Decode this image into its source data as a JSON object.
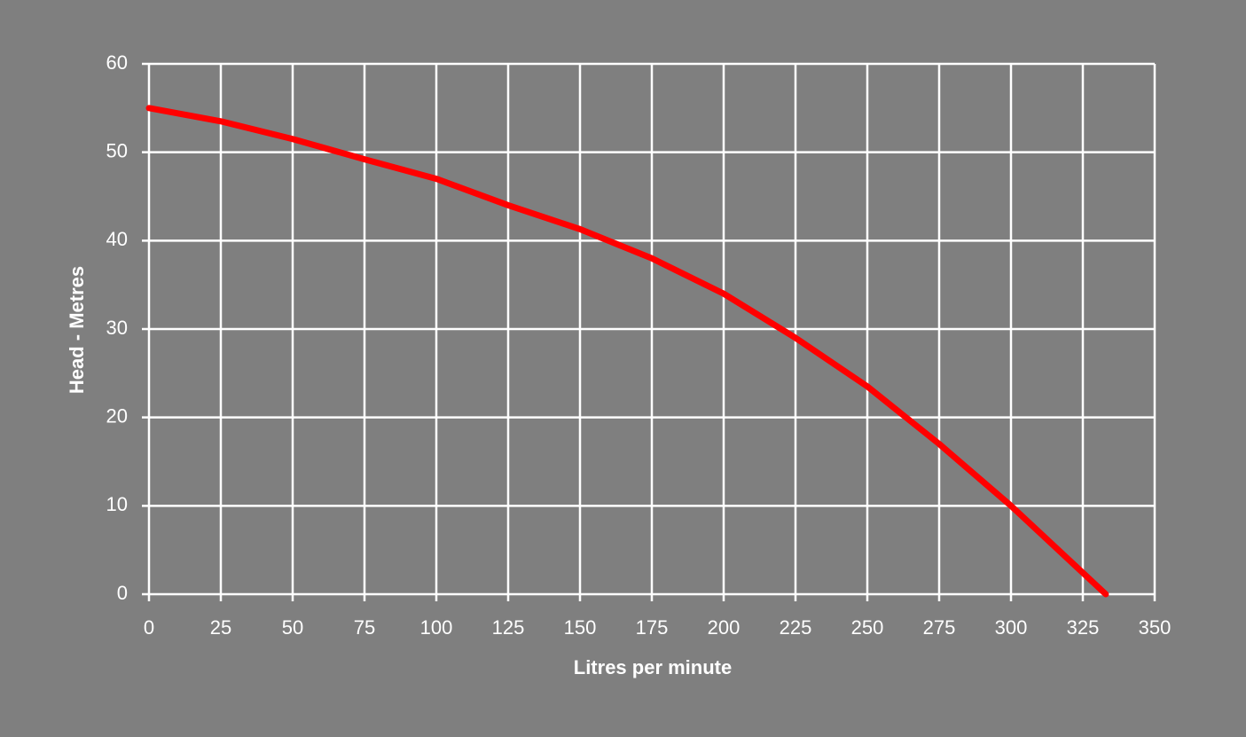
{
  "chart_data": {
    "type": "line",
    "x_label": "Litres per minute",
    "y_label": "Head - Metres",
    "x": [
      0,
      25,
      50,
      75,
      100,
      125,
      150,
      175,
      200,
      225,
      250,
      275,
      300,
      333
    ],
    "series": [
      {
        "name": "Head",
        "color": "#ff0000",
        "values": [
          55,
          53.5,
          51.5,
          49.2,
          47,
          44,
          41.3,
          38,
          34,
          29,
          23.5,
          17,
          10,
          0
        ]
      }
    ],
    "xlim": [
      0,
      350
    ],
    "xticks": [
      0,
      25,
      50,
      75,
      100,
      125,
      150,
      175,
      200,
      225,
      250,
      275,
      300,
      325,
      350
    ],
    "ylim": [
      0,
      60
    ],
    "yticks": [
      0,
      10,
      20,
      30,
      40,
      50,
      60
    ],
    "grid": true,
    "legend": false
  }
}
